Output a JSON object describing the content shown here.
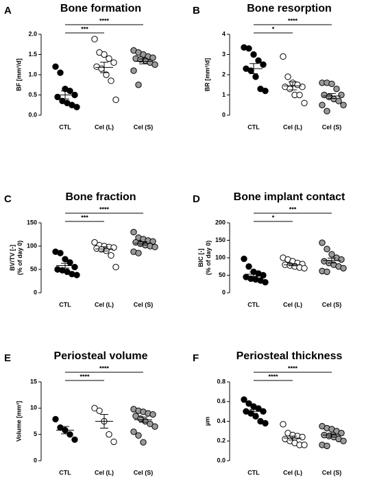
{
  "chart_data": [
    {
      "type": "dot",
      "panel_label": "A",
      "title": "Bone formation",
      "ylabel": [
        "BF [mm³/d]"
      ],
      "categories": [
        "CTL",
        "Cel (L)",
        "Cel (S)"
      ],
      "colors": [
        "#000000",
        "#ffffff",
        "#9a9a9a"
      ],
      "values": [
        [
          1.2,
          1.05,
          0.65,
          0.6,
          0.5,
          0.45,
          0.35,
          0.3,
          0.25,
          0.2
        ],
        [
          1.88,
          1.55,
          1.5,
          1.4,
          1.3,
          1.2,
          1.15,
          1.0,
          0.85,
          0.38
        ],
        [
          1.6,
          1.55,
          1.5,
          1.45,
          1.42,
          1.4,
          1.38,
          1.35,
          1.3,
          1.25,
          1.1,
          0.75
        ]
      ],
      "means": [
        0.5,
        1.18,
        1.33
      ],
      "errors": [
        0.1,
        0.13,
        0.06
      ],
      "ylim": [
        0,
        2
      ],
      "yticks": [
        {
          "value": 0,
          "label": "0.0"
        },
        0.5,
        {
          "value": 1,
          "label": "1.0"
        },
        1.5,
        {
          "value": 2,
          "label": "2.0"
        }
      ],
      "annotations": [
        {
          "from": 0,
          "to": 1,
          "label": "***"
        },
        {
          "from": 0,
          "to": 2,
          "label": "****"
        }
      ]
    },
    {
      "type": "dot",
      "panel_label": "B",
      "title": "Bone resorption",
      "ylabel": [
        "BR [mm³/d]"
      ],
      "categories": [
        "CTL",
        "Cel (L)",
        "Cel (S)"
      ],
      "colors": [
        "#000000",
        "#ffffff",
        "#9a9a9a"
      ],
      "values": [
        [
          3.35,
          3.3,
          3.0,
          2.7,
          2.5,
          2.3,
          2.2,
          1.9,
          1.3,
          1.2
        ],
        [
          2.9,
          1.9,
          1.6,
          1.5,
          1.4,
          1.4,
          1.3,
          1.0,
          1.0,
          0.6
        ],
        [
          1.6,
          1.6,
          1.55,
          1.3,
          1.0,
          1.0,
          0.9,
          0.8,
          0.7,
          0.5,
          0.5,
          0.2
        ]
      ],
      "means": [
        2.3,
        1.45,
        0.95
      ],
      "errors": [
        0.25,
        0.2,
        0.12
      ],
      "ylim": [
        0,
        4
      ],
      "yticks": [
        0,
        1,
        2,
        3,
        4
      ],
      "annotations": [
        {
          "from": 0,
          "to": 1,
          "label": "*"
        },
        {
          "from": 0,
          "to": 2,
          "label": "****"
        }
      ]
    },
    {
      "type": "dot",
      "panel_label": "C",
      "title": "Bone fraction",
      "ylabel": [
        "BV/TV [-]",
        "(% of day 0)"
      ],
      "categories": [
        "CTL",
        "Cel (L)",
        "Cel (S)"
      ],
      "colors": [
        "#000000",
        "#ffffff",
        "#9a9a9a"
      ],
      "values": [
        [
          88,
          85,
          72,
          65,
          55,
          50,
          48,
          45,
          40,
          38
        ],
        [
          108,
          102,
          100,
          98,
          97,
          95,
          93,
          90,
          80,
          55
        ],
        [
          130,
          118,
          115,
          112,
          110,
          108,
          105,
          102,
          100,
          98,
          88,
          85
        ]
      ],
      "means": [
        58,
        94,
        106
      ],
      "errors": [
        5,
        4.5,
        3.5
      ],
      "ylim": [
        0,
        150
      ],
      "yticks": [
        0,
        50,
        100,
        150
      ],
      "annotations": [
        {
          "from": 0,
          "to": 1,
          "label": "***"
        },
        {
          "from": 0,
          "to": 2,
          "label": "****"
        }
      ]
    },
    {
      "type": "dot",
      "panel_label": "D",
      "title": "Bone implant contact",
      "ylabel": [
        "BIC [-]",
        "(% of day 0)"
      ],
      "categories": [
        "CTL",
        "Cel (L)",
        "Cel (S)"
      ],
      "colors": [
        "#000000",
        "#ffffff",
        "#9a9a9a"
      ],
      "values": [
        [
          97,
          75,
          60,
          55,
          50,
          45,
          40,
          38,
          35,
          30
        ],
        [
          100,
          95,
          90,
          85,
          82,
          80,
          78,
          75,
          72,
          70
        ],
        [
          143,
          125,
          110,
          100,
          95,
          90,
          85,
          80,
          75,
          70,
          62,
          60
        ]
      ],
      "means": [
        53,
        80,
        92
      ],
      "errors": [
        6,
        3,
        7
      ],
      "ylim": [
        0,
        200
      ],
      "yticks": [
        0,
        50,
        100,
        150,
        200
      ],
      "annotations": [
        {
          "from": 0,
          "to": 1,
          "label": "*"
        },
        {
          "from": 0,
          "to": 2,
          "label": "***"
        }
      ]
    },
    {
      "type": "dot",
      "panel_label": "E",
      "title": "Periosteal volume",
      "ylabel": [
        "Volume [mm³]"
      ],
      "categories": [
        "CTL",
        "Cel (L)",
        "Cel (S)"
      ],
      "colors": [
        "#000000",
        "#ffffff",
        "#9a9a9a"
      ],
      "values": [
        [
          7.9,
          6.3,
          5.8,
          5.0,
          4.0
        ],
        [
          10.0,
          9.5,
          7.5,
          5.0,
          3.6
        ],
        [
          9.8,
          9.5,
          9.3,
          9.0,
          8.8,
          8.5,
          8.0,
          7.5,
          7.0,
          6.5,
          5.5,
          4.8,
          3.5
        ]
      ],
      "means": [
        5.8,
        7.5,
        7.8
      ],
      "errors": [
        0.7,
        1.3,
        0.5
      ],
      "ylim": [
        0,
        15
      ],
      "yticks": [
        0,
        5,
        10,
        15
      ],
      "annotations": [
        {
          "from": 0,
          "to": 1,
          "label": "****"
        },
        {
          "from": 0,
          "to": 2,
          "label": "****"
        }
      ]
    },
    {
      "type": "dot",
      "panel_label": "F",
      "title": "Periosteal thickness",
      "ylabel": [
        "µm"
      ],
      "categories": [
        "CTL",
        "Cel (L)",
        "Cel (S)"
      ],
      "colors": [
        "#000000",
        "#ffffff",
        "#9a9a9a"
      ],
      "values": [
        [
          0.62,
          0.58,
          0.55,
          0.53,
          0.5,
          0.5,
          0.48,
          0.45,
          0.4,
          0.38
        ],
        [
          0.37,
          0.28,
          0.26,
          0.25,
          0.24,
          0.22,
          0.2,
          0.18,
          0.16,
          0.16
        ],
        [
          0.35,
          0.33,
          0.32,
          0.3,
          0.28,
          0.26,
          0.25,
          0.24,
          0.22,
          0.2,
          0.16,
          0.15
        ]
      ],
      "means": [
        0.5,
        0.23,
        0.26
      ],
      "errors": [
        0.02,
        0.02,
        0.02
      ],
      "ylim": [
        0,
        0.8
      ],
      "yticks": [
        {
          "value": 0,
          "label": "0.0"
        },
        0.2,
        0.4,
        0.6,
        0.8
      ],
      "annotations": [
        {
          "from": 0,
          "to": 1,
          "label": "****"
        },
        {
          "from": 0,
          "to": 2,
          "label": "****"
        }
      ]
    }
  ]
}
